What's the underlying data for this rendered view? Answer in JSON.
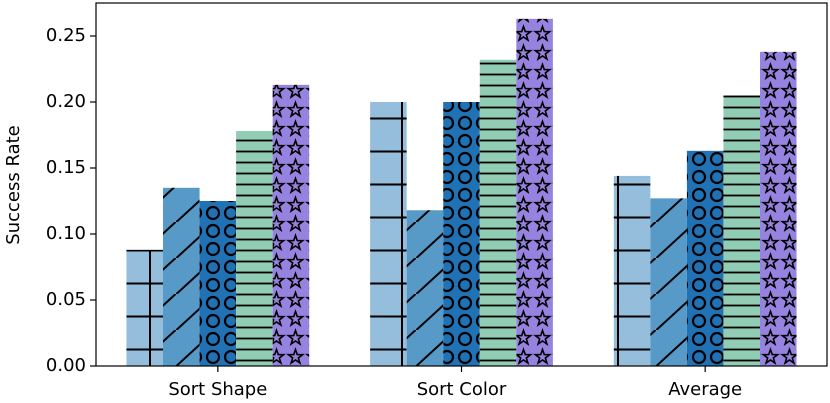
{
  "chart_data": {
    "type": "bar",
    "y_label": "Success Rate",
    "categories": [
      "Sort Shape",
      "Sort Color",
      "Average"
    ],
    "series": [
      {
        "color": "#94bedb",
        "hatch": "+",
        "values": [
          0.088,
          0.2,
          0.144
        ]
      },
      {
        "color": "#5799c7",
        "hatch": "/",
        "values": [
          0.135,
          0.118,
          0.127
        ]
      },
      {
        "color": "#2171b5",
        "hatch": "O",
        "values": [
          0.125,
          0.2,
          0.163
        ]
      },
      {
        "color": "#91ccb5",
        "hatch": "-",
        "values": [
          0.178,
          0.232,
          0.205
        ]
      },
      {
        "color": "#9683e0",
        "hatch": "*",
        "values": [
          0.213,
          0.263,
          0.238
        ]
      }
    ],
    "ylim": [
      0,
      0.275
    ],
    "yticks": [
      {
        "value": 0,
        "label": "0.00"
      },
      0.05,
      {
        "value": 0.1,
        "label": "0.10"
      },
      {
        "value": 0.15,
        "label": "0.15"
      },
      {
        "value": 0.2,
        "label": "0.20"
      },
      0.25
    ],
    "grid": false
  }
}
